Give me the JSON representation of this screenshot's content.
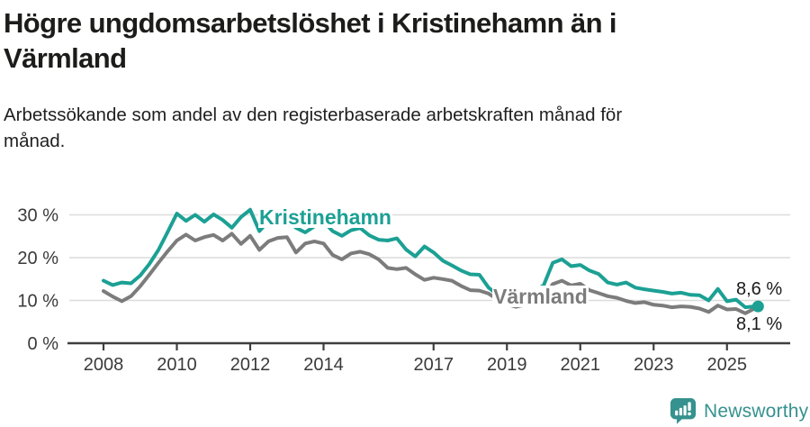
{
  "header": {
    "title_lines": [
      "Högre ungdomsarbetslöshet i Kristinehamn än i",
      "Värmland"
    ],
    "subtitle_lines": [
      "Arbetssökande som andel av den registerbaserade arbetskraften månad för",
      "månad."
    ]
  },
  "chart_data": {
    "type": "line",
    "title": "Högre ungdomsarbetslöshet i Kristinehamn än i Värmland",
    "subtitle": "Arbetssökande som andel av den registerbaserade arbetskraften månad för månad.",
    "x_start": 2008,
    "x_step": 0.25,
    "xlim": [
      2007.05,
      2026.7
    ],
    "ylim": [
      0,
      33
    ],
    "grid": "horizontal-only",
    "legend_position": "inline-labels",
    "x_axis_ticks": [
      2008,
      2010,
      2012,
      2014,
      2017,
      2019,
      2021,
      2023,
      2025
    ],
    "x_tick_labels": [
      "2008",
      "2010",
      "2012",
      "2014",
      "2017",
      "2019",
      "2021",
      "2023",
      "2025"
    ],
    "y_ticks": [
      0,
      10,
      20,
      30
    ],
    "y_tick_labels": [
      "0 %",
      "10 %",
      "20 %",
      "30 %"
    ],
    "series": [
      {
        "name": "Kristinehamn",
        "color": "#1CA094",
        "end_label": "8,6 %",
        "end_value": 8.6,
        "end_dot": true,
        "values": [
          14.6,
          13.6,
          14.2,
          14.0,
          15.8,
          18.5,
          21.8,
          26.0,
          30.3,
          28.6,
          30.0,
          28.4,
          30.1,
          28.8,
          27.0,
          29.5,
          31.2,
          26.2,
          28.6,
          29.3,
          28.6,
          27.0,
          25.9,
          27.3,
          28.4,
          26.2,
          25.1,
          26.4,
          26.9,
          25.2,
          24.2,
          24.0,
          24.5,
          21.9,
          20.3,
          22.6,
          21.2,
          19.3,
          18.2,
          17.0,
          16.1,
          16.0,
          13.0,
          11.3,
          11.0,
          11.4,
          12.0,
          12.3,
          13.5,
          18.8,
          19.6,
          18.0,
          18.3,
          17.0,
          16.2,
          14.2,
          13.7,
          14.2,
          13.0,
          12.6,
          12.3,
          12.0,
          11.6,
          11.8,
          11.3,
          11.2,
          10.0,
          12.7,
          9.8,
          10.2,
          8.4,
          8.6
        ]
      },
      {
        "name": "Värmland",
        "color": "#7C7C7C",
        "end_label": "8,1 %",
        "end_value": 8.1,
        "end_dot": false,
        "values": [
          12.2,
          10.9,
          9.8,
          11.0,
          13.3,
          16.0,
          18.8,
          21.5,
          24.0,
          25.4,
          24.0,
          24.8,
          25.3,
          24.0,
          25.6,
          23.2,
          25.1,
          21.8,
          23.8,
          24.6,
          24.8,
          21.2,
          23.3,
          23.8,
          23.3,
          20.6,
          19.6,
          21.0,
          21.4,
          20.8,
          19.6,
          17.6,
          17.3,
          17.6,
          16.1,
          14.8,
          15.3,
          15.0,
          14.6,
          13.4,
          12.4,
          12.3,
          11.6,
          10.2,
          9.1,
          8.5,
          9.0,
          9.6,
          10.5,
          13.8,
          14.6,
          13.5,
          13.9,
          12.4,
          11.7,
          11.0,
          10.6,
          9.9,
          9.4,
          9.6,
          9.0,
          8.8,
          8.4,
          8.6,
          8.5,
          8.1,
          7.3,
          8.8,
          7.9,
          8.0,
          7.0,
          8.1
        ]
      }
    ]
  },
  "colors": {
    "accent_teal": "#1CA094",
    "series_gray": "#7C7C7C",
    "brand_teal": "#35928E",
    "axis": "#3F3F3F",
    "gridline": "#DCDCDC",
    "tick_text": "#3A3A3A"
  },
  "footer": {
    "brand": "Newsworthy"
  }
}
